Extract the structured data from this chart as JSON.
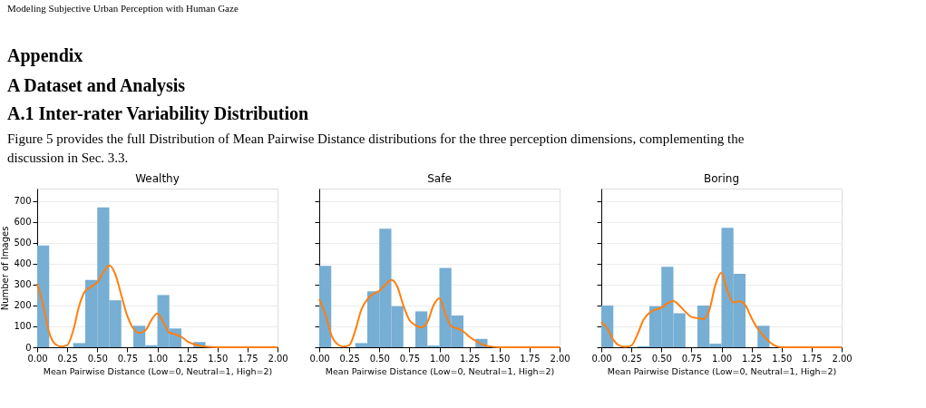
{
  "chart_data": [
    {
      "type": "histogram",
      "title": "Wealthy",
      "xlabel": "Mean Pairwise Distance (Low=0, Neutral=1, High=2)",
      "ylabel": "Number of Images",
      "annotations": [
        "Modeling Subjective Urban Perception with Human Gaze",
        "Appendix",
        "A    Dataset and Analysis",
        "A.1    Inter-rater Variability Distribution",
        "Figure 5 provides the full Distribution of Mean Pairwise Distance distributions for the three perception dimensions, complementing the\ndiscussion in Sec. 3.3."
      ],
      "bins": [
        0,
        0.1,
        0.2,
        0.3,
        0.4,
        0.5,
        0.6,
        0.7,
        0.8,
        0.9,
        1.0,
        1.1,
        1.2,
        1.3,
        1.4
      ],
      "values": [
        487,
        0,
        0,
        20,
        323,
        670,
        225,
        0,
        103,
        10,
        250,
        90,
        0,
        25
      ],
      "color": "#77aed3",
      "series": [
        {
          "type": "line",
          "color": "#ff7f0e",
          "x": [
            0,
            0.05,
            0.1,
            0.15,
            0.2,
            0.25,
            0.3,
            0.35,
            0.4,
            0.45,
            0.5,
            0.55,
            0.6,
            0.65,
            0.7,
            0.75,
            0.8,
            0.85,
            0.9,
            0.95,
            1.0,
            1.05,
            1.1,
            1.15,
            1.2,
            1.25,
            1.3,
            1.35,
            1.4,
            1.5,
            2.0
          ],
          "values": [
            305,
            200,
            70,
            15,
            3,
            10,
            80,
            200,
            270,
            290,
            310,
            360,
            392,
            350,
            250,
            150,
            90,
            68,
            80,
            130,
            162,
            120,
            70,
            62,
            50,
            28,
            15,
            8,
            3,
            0,
            0
          ]
        }
      ],
      "xlim": [
        0,
        2
      ],
      "xticks": [
        {
          "value": 0,
          "label": "0.00"
        },
        0.25,
        {
          "value": 0.5,
          "label": "0.50"
        },
        0.75,
        {
          "value": 1,
          "label": "1.00"
        },
        1.25,
        {
          "value": 1.5,
          "label": "1.50"
        },
        1.75,
        {
          "value": 2,
          "label": "2.00"
        }
      ],
      "ylim": [
        0,
        760
      ],
      "yticks": [
        0,
        100,
        200,
        300,
        400,
        500,
        600,
        700
      ],
      "grid": "y"
    },
    {
      "type": "histogram",
      "title": "Safe",
      "xlabel": "Mean Pairwise Distance (Low=0, Neutral=1, High=2)",
      "bins": [
        0,
        0.1,
        0.2,
        0.3,
        0.4,
        0.5,
        0.6,
        0.7,
        0.8,
        0.9,
        1.0,
        1.1,
        1.2,
        1.3,
        1.4
      ],
      "values": [
        390,
        0,
        0,
        20,
        268,
        568,
        197,
        0,
        172,
        8,
        380,
        152,
        0,
        40
      ],
      "color": "#77aed3",
      "series": [
        {
          "type": "line",
          "color": "#ff7f0e",
          "x": [
            0,
            0.05,
            0.1,
            0.15,
            0.2,
            0.25,
            0.3,
            0.35,
            0.4,
            0.45,
            0.5,
            0.55,
            0.6,
            0.65,
            0.7,
            0.75,
            0.8,
            0.85,
            0.9,
            0.95,
            1.0,
            1.05,
            1.1,
            1.15,
            1.2,
            1.25,
            1.3,
            1.35,
            1.4,
            1.5,
            2.0
          ],
          "values": [
            230,
            160,
            60,
            15,
            3,
            10,
            80,
            180,
            230,
            255,
            270,
            300,
            322,
            290,
            200,
            130,
            105,
            95,
            120,
            200,
            235,
            160,
            100,
            90,
            75,
            50,
            32,
            15,
            6,
            0,
            0
          ]
        }
      ],
      "xlim": [
        0,
        2
      ],
      "xticks": [
        {
          "value": 0,
          "label": "0.00"
        },
        0.25,
        {
          "value": 0.5,
          "label": "0.50"
        },
        0.75,
        {
          "value": 1,
          "label": "1.00"
        },
        1.25,
        {
          "value": 1.5,
          "label": "1.50"
        },
        1.75,
        {
          "value": 2,
          "label": "2.00"
        }
      ],
      "ylim": [
        0,
        760
      ],
      "yticks": [
        0,
        100,
        200,
        300,
        400,
        500,
        600,
        700
      ],
      "grid": "y",
      "tick_labels": "x"
    },
    {
      "type": "histogram",
      "title": "Boring",
      "xlabel": "Mean Pairwise Distance (Low=0, Neutral=1, High=2)",
      "bins": [
        0,
        0.1,
        0.2,
        0.3,
        0.4,
        0.5,
        0.6,
        0.7,
        0.8,
        0.9,
        1.0,
        1.1,
        1.2,
        1.3,
        1.4
      ],
      "values": [
        200,
        0,
        0,
        5,
        197,
        385,
        163,
        0,
        200,
        17,
        572,
        352,
        0,
        103
      ],
      "color": "#77aed3",
      "series": [
        {
          "type": "line",
          "color": "#ff7f0e",
          "x": [
            0,
            0.05,
            0.1,
            0.15,
            0.2,
            0.25,
            0.3,
            0.35,
            0.4,
            0.45,
            0.5,
            0.55,
            0.6,
            0.65,
            0.7,
            0.75,
            0.8,
            0.85,
            0.9,
            0.95,
            1.0,
            1.05,
            1.1,
            1.15,
            1.2,
            1.25,
            1.3,
            1.35,
            1.4,
            1.5,
            2.0
          ],
          "values": [
            120,
            90,
            35,
            8,
            2,
            8,
            60,
            130,
            165,
            180,
            190,
            210,
            222,
            200,
            170,
            145,
            140,
            135,
            180,
            300,
            357,
            270,
            215,
            220,
            200,
            140,
            90,
            55,
            25,
            0,
            0
          ]
        }
      ],
      "xlim": [
        0,
        2
      ],
      "xticks": [
        {
          "value": 0,
          "label": "0.00"
        },
        0.25,
        {
          "value": 0.5,
          "label": "0.50"
        },
        0.75,
        {
          "value": 1,
          "label": "1.00"
        },
        1.25,
        {
          "value": 1.5,
          "label": "1.50"
        },
        1.75,
        {
          "value": 2,
          "label": "2.00"
        }
      ],
      "ylim": [
        0,
        760
      ],
      "yticks": [
        0,
        100,
        200,
        300,
        400,
        500,
        600,
        700
      ],
      "grid": "y",
      "tick_labels": "x"
    }
  ]
}
